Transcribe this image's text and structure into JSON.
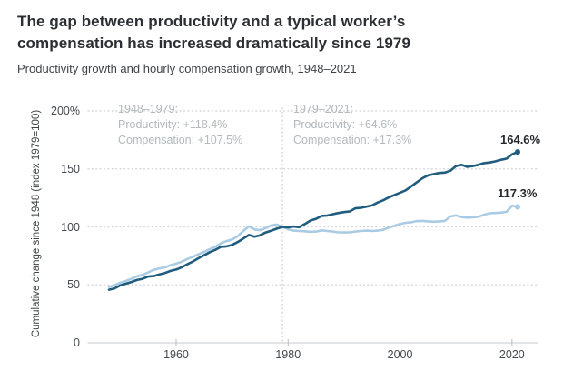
{
  "header": {
    "title_line1": "The gap between productivity and a typical worker’s",
    "title_line2": "compensation has increased dramatically since 1979",
    "subtitle": "Productivity growth and hourly compensation growth, 1948–2021"
  },
  "annotations": {
    "period1": {
      "range": "1948–1979:",
      "productivity": "Productivity: +118.4%",
      "compensation": "Compensation: +107.5%"
    },
    "period2": {
      "range": "1979–2021:",
      "productivity": "Productivity: +64.6%",
      "compensation": "Compensation: +17.3%"
    }
  },
  "end_labels": {
    "productivity": "164.6%",
    "compensation": "117.3%"
  },
  "y_axis_title": "Cumulative change since 1948 (index 1979=100)",
  "colors": {
    "productivity_line": "#1f5c7d",
    "compensation_line": "#a9cce4",
    "gridline": "#d6d8d9",
    "baseline": "#c7c9cb",
    "tick_mark": "#b9bbbd",
    "reference_line": "#d2d4d6"
  },
  "chart_data": {
    "type": "line",
    "title": "Productivity growth and hourly compensation growth, 1948–2021",
    "ylabel": "Cumulative change since 1948 (index 1979=100)",
    "xlim": [
      1948,
      2021
    ],
    "ylim": [
      0,
      200
    ],
    "grid": "dotted horizontal gridlines at 50/100/150/200, solid baseline at 0",
    "legend_position": "none (lines labeled by end values)",
    "reference_line_x": 1979,
    "x_ticks": [
      1960,
      1980,
      2000,
      2020
    ],
    "y_ticks": [
      {
        "value": 0,
        "label": "0"
      },
      {
        "value": 50,
        "label": "50"
      },
      {
        "value": 100,
        "label": "100"
      },
      {
        "value": 150,
        "label": "150"
      },
      {
        "value": 200,
        "label": "200%"
      }
    ],
    "x": [
      1948,
      1949,
      1950,
      1951,
      1952,
      1953,
      1954,
      1955,
      1956,
      1957,
      1958,
      1959,
      1960,
      1961,
      1962,
      1963,
      1964,
      1965,
      1966,
      1967,
      1968,
      1969,
      1970,
      1971,
      1972,
      1973,
      1974,
      1975,
      1976,
      1977,
      1978,
      1979,
      1980,
      1981,
      1982,
      1983,
      1984,
      1985,
      1986,
      1987,
      1988,
      1989,
      1990,
      1991,
      1992,
      1993,
      1994,
      1995,
      1996,
      1997,
      1998,
      1999,
      2000,
      2001,
      2002,
      2003,
      2004,
      2005,
      2006,
      2007,
      2008,
      2009,
      2010,
      2011,
      2012,
      2013,
      2014,
      2015,
      2016,
      2017,
      2018,
      2019,
      2020,
      2021
    ],
    "series": [
      {
        "name": "Productivity",
        "color": "#1f5c7d",
        "end_value": 164.6,
        "values": [
          45.8,
          47,
          49.5,
          51,
          52.5,
          54.2,
          55.2,
          57.2,
          57.6,
          59,
          60.2,
          62,
          63.2,
          65.2,
          67.8,
          70.2,
          73,
          75.5,
          78.2,
          80.2,
          82.8,
          83.2,
          84.5,
          87,
          90,
          93,
          91.5,
          92.8,
          95.2,
          96.8,
          98.5,
          100,
          99.5,
          100.3,
          99.8,
          102.5,
          105.5,
          107,
          109.5,
          109.8,
          111,
          112,
          112.8,
          113.3,
          116,
          116.5,
          117.5,
          118.5,
          121,
          123,
          125.5,
          127.5,
          129.5,
          131.5,
          135,
          138.5,
          142,
          144.5,
          145.5,
          146.5,
          146.8,
          148.5,
          152.5,
          153.5,
          151.8,
          152.5,
          153.5,
          155,
          155.5,
          156.5,
          157.8,
          158.8,
          162.5,
          164.6
        ]
      },
      {
        "name": "Hourly compensation",
        "color": "#a9cce4",
        "end_value": 117.3,
        "values": [
          48.2,
          49.8,
          51.8,
          53.3,
          55.2,
          57.4,
          58.6,
          60.8,
          63,
          64.2,
          65,
          67,
          68.3,
          70,
          72.3,
          74.2,
          76.4,
          78.4,
          80.8,
          83,
          85.8,
          87.8,
          89.2,
          92,
          96.5,
          100.5,
          97.8,
          97.2,
          99,
          101.3,
          102,
          100,
          98,
          96.8,
          96.5,
          96.2,
          95.8,
          96,
          97,
          96.5,
          96,
          95.3,
          95.2,
          95.3,
          96,
          96.5,
          96.8,
          96.5,
          96.8,
          97.5,
          99.5,
          101,
          102.5,
          103.5,
          104,
          105,
          105.2,
          104.8,
          104.5,
          104.8,
          105.2,
          109,
          110,
          108.5,
          108,
          108.3,
          108.8,
          110.5,
          111.8,
          112,
          112.3,
          113,
          118.3,
          117.3
        ]
      }
    ]
  }
}
